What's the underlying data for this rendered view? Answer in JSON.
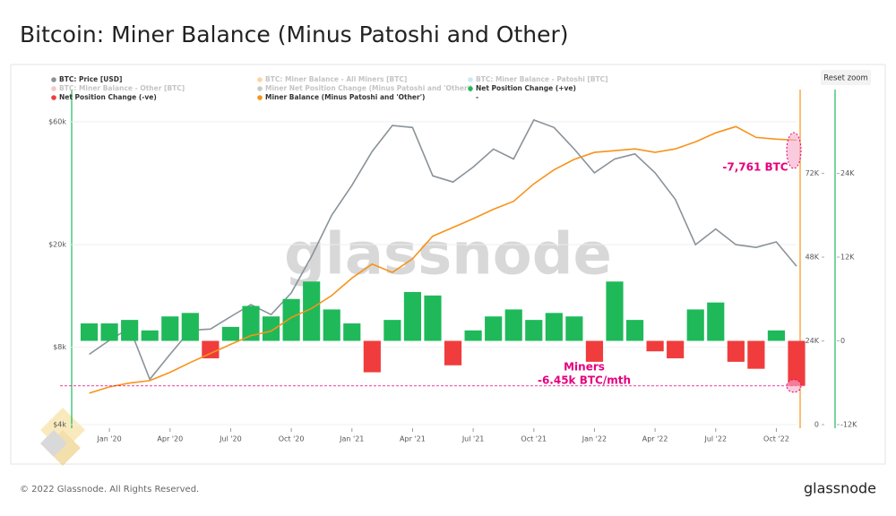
{
  "title": "Bitcoin: Miner Balance (Minus Patoshi and Other)",
  "button": "Reset zoom",
  "watermark": "glassnode",
  "footer": {
    "copyright": "© 2022 Glassnode. All Rights Reserved.",
    "logo": "glassnode"
  },
  "chart_data": {
    "type": "line",
    "x": [
      "2019-12",
      "2020-01",
      "2020-02",
      "2020-03",
      "2020-04",
      "2020-05",
      "2020-06",
      "2020-07",
      "2020-08",
      "2020-09",
      "2020-10",
      "2020-11",
      "2020-12",
      "2021-01",
      "2021-02",
      "2021-03",
      "2021-04",
      "2021-05",
      "2021-06",
      "2021-07",
      "2021-08",
      "2021-09",
      "2021-10",
      "2021-11",
      "2021-12",
      "2022-01",
      "2022-02",
      "2022-03",
      "2022-04",
      "2022-05",
      "2022-06",
      "2022-07",
      "2022-08",
      "2022-09",
      "2022-10",
      "2022-11"
    ],
    "xlim": [
      "2019-11",
      "2022-11"
    ],
    "xticks": [
      {
        "value": "2020-01",
        "label": "Jan '20"
      },
      {
        "value": "2020-04",
        "label": "Apr '20"
      },
      {
        "value": "2020-07",
        "label": "Jul '20"
      },
      {
        "value": "2020-10",
        "label": "Oct '20"
      },
      {
        "value": "2021-01",
        "label": "Jan '21"
      },
      {
        "value": "2021-04",
        "label": "Apr '21"
      },
      {
        "value": "2021-07",
        "label": "Jul '21"
      },
      {
        "value": "2021-10",
        "label": "Oct '21"
      },
      {
        "value": "2022-01",
        "label": "Jan '22"
      },
      {
        "value": "2022-04",
        "label": "Apr '22"
      },
      {
        "value": "2022-07",
        "label": "Jul '22"
      },
      {
        "value": "2022-10",
        "label": "Oct '22"
      }
    ],
    "ylim": [
      4000,
      80000
    ],
    "ylog": true,
    "yticks": [
      {
        "value": 4000,
        "label": "$4k"
      },
      {
        "value": 8000,
        "label": "$8k"
      },
      {
        "value": 20000,
        "label": "$20k"
      },
      {
        "value": 60000,
        "label": "$60k"
      }
    ],
    "y2lim": [
      0,
      96000
    ],
    "y2ticks": [
      0,
      {
        "value": 24000,
        "label": "24K"
      },
      {
        "value": 48000,
        "label": "48K"
      },
      {
        "value": 72000,
        "label": "72K"
      }
    ],
    "y3lim": [
      -12000,
      36000
    ],
    "y3ticks": [
      {
        "value": -12000,
        "label": "-12K"
      },
      0,
      {
        "value": 12000,
        "label": "12K"
      },
      {
        "value": 24000,
        "label": "24K"
      }
    ],
    "series": [
      {
        "name": "BTC: Price [USD]",
        "color": "#8a9399",
        "axis": "y",
        "values": [
          7500,
          8500,
          9500,
          6000,
          7500,
          9300,
          9400,
          10500,
          11700,
          10700,
          13000,
          18000,
          26000,
          34000,
          46000,
          58000,
          57000,
          37000,
          35000,
          40000,
          47000,
          43000,
          61000,
          57000,
          47000,
          38000,
          43000,
          45000,
          38000,
          30000,
          20000,
          23000,
          20000,
          19500,
          20500,
          16500
        ]
      },
      {
        "name": "BTC: Miner Balance - All Miners [BTC]",
        "color": "#f7931a",
        "hidden": true
      },
      {
        "name": "BTC: Miner Balance - Patoshi [BTC]",
        "color": "#7ec8e3",
        "hidden": true
      },
      {
        "name": "BTC: Miner Balance - Other [BTC]",
        "color": "#f26d6d",
        "hidden": true
      },
      {
        "name": "Miner Net Position Change (Minus Patoshi and 'Other')",
        "color": "#777777",
        "hidden": true
      },
      {
        "name": "Net Position Change (+ve)",
        "color": "#1fb95a",
        "axis": "y3",
        "kind": "bar",
        "values": [
          2500,
          2500,
          3000,
          1500,
          3500,
          4000,
          null,
          2000,
          5000,
          3500,
          6000,
          8500,
          4500,
          2500,
          null,
          3000,
          7000,
          6500,
          null,
          1500,
          3500,
          4500,
          3000,
          4000,
          3500,
          null,
          8500,
          3000,
          null,
          null,
          4500,
          5500,
          null,
          null,
          1500,
          null
        ]
      },
      {
        "name": "Net Position Change (-ve)",
        "color": "#f03c3c",
        "axis": "y3",
        "kind": "bar",
        "values": [
          null,
          null,
          null,
          null,
          null,
          null,
          -2500,
          null,
          null,
          null,
          null,
          null,
          null,
          null,
          -4500,
          null,
          null,
          null,
          -3500,
          null,
          null,
          null,
          null,
          null,
          null,
          -3000,
          null,
          null,
          -1500,
          -2500,
          null,
          null,
          -3000,
          -4000,
          null,
          -6450
        ]
      },
      {
        "name": "Miner Balance (Minus Patoshi and 'Other')",
        "color": "#f7931a",
        "axis": "y2",
        "values": [
          9000,
          10800,
          11900,
          12600,
          15000,
          17800,
          20400,
          23000,
          25500,
          26800,
          30700,
          33300,
          37000,
          42000,
          46000,
          43600,
          47500,
          54000,
          56500,
          59000,
          61700,
          64000,
          69000,
          73000,
          76000,
          78000,
          78500,
          79000,
          78000,
          79000,
          81000,
          83600,
          85400,
          82300,
          81800,
          81500
        ]
      },
      {
        "name": "-"
      }
    ],
    "annotations": [
      "-7,761 BTC",
      "Miners",
      "-6.45k BTC/mth"
    ]
  }
}
